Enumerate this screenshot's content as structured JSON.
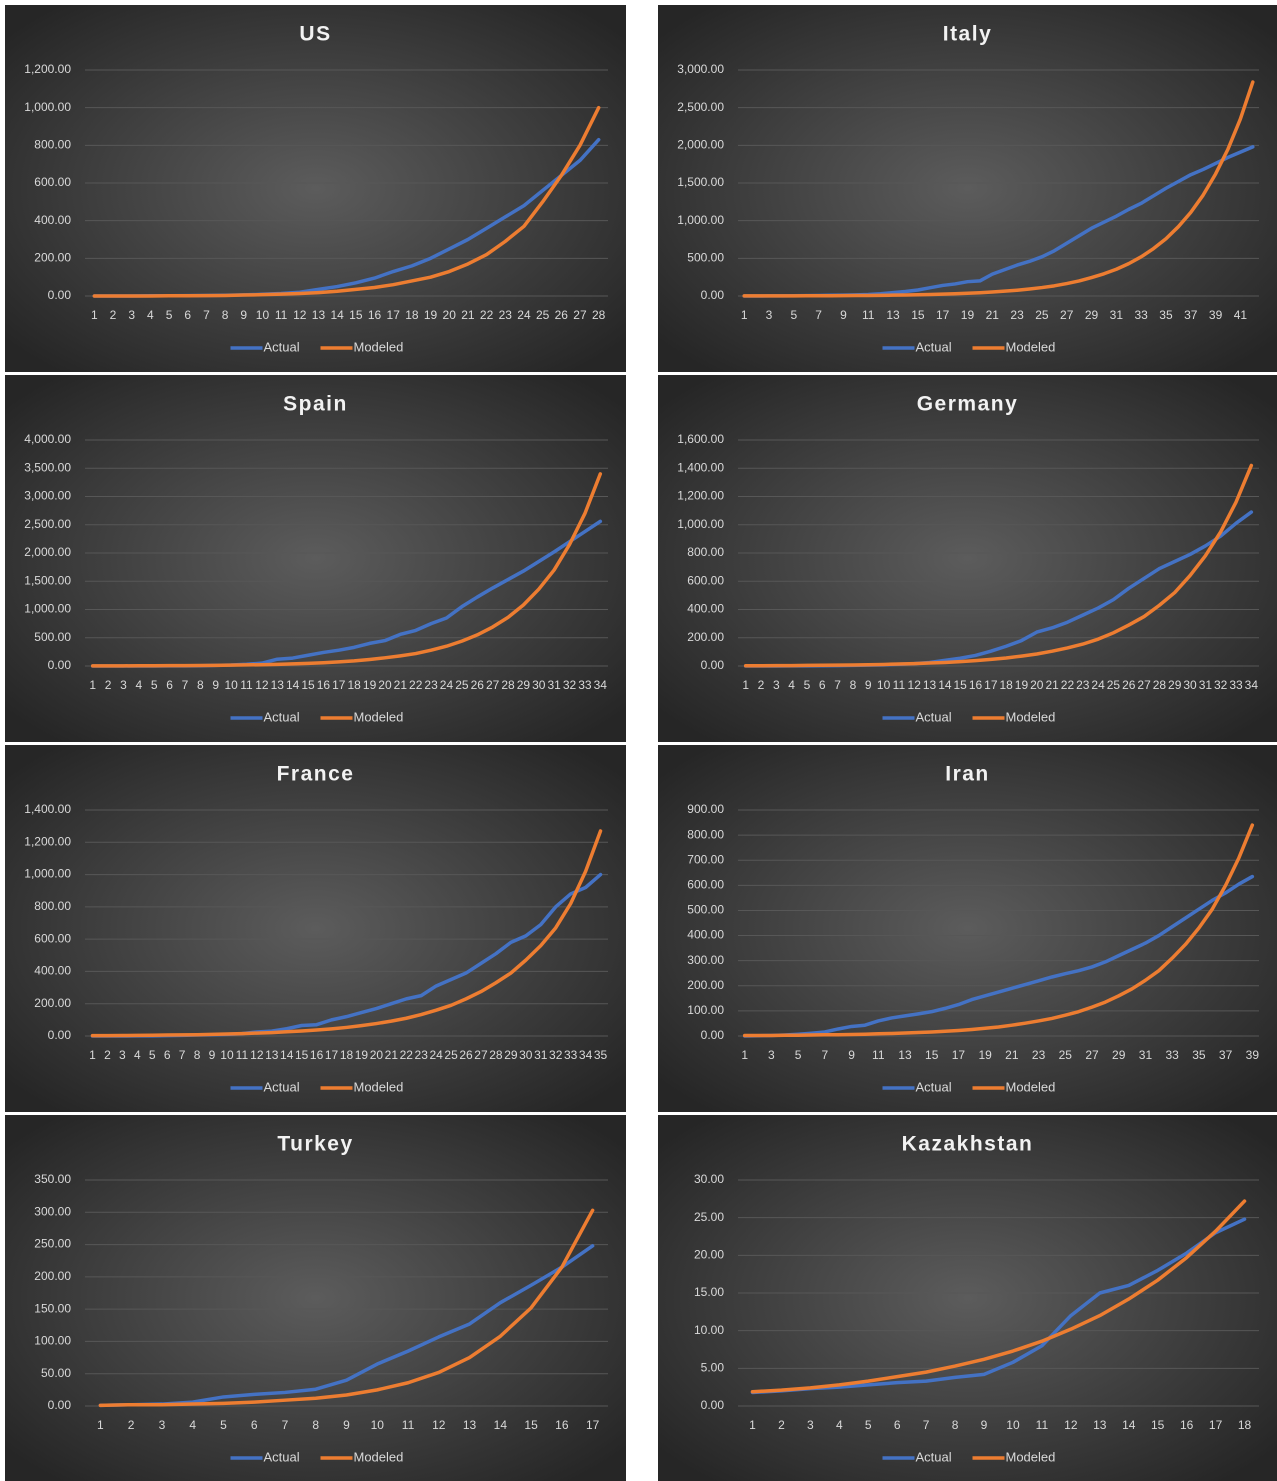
{
  "chart_data": [
    {
      "type": "line",
      "title": "US",
      "legend": "bottom",
      "grid": true,
      "categories": [
        1,
        2,
        3,
        4,
        5,
        6,
        7,
        8,
        9,
        10,
        11,
        12,
        13,
        14,
        15,
        16,
        17,
        18,
        19,
        20,
        21,
        22,
        23,
        24,
        25,
        26,
        27,
        28
      ],
      "series": [
        {
          "name": "Actual",
          "color": "#4472c4",
          "values": [
            0,
            0,
            0,
            1,
            1,
            2,
            3,
            4,
            6,
            9,
            13,
            20,
            35,
            50,
            70,
            95,
            130,
            160,
            200,
            250,
            300,
            360,
            420,
            480,
            560,
            640,
            720,
            830
          ]
        },
        {
          "name": "Modeled",
          "color": "#ed7d31",
          "values": [
            0,
            0,
            0,
            0,
            1,
            1,
            2,
            3,
            5,
            7,
            10,
            13,
            18,
            25,
            35,
            45,
            60,
            80,
            100,
            130,
            170,
            220,
            290,
            370,
            500,
            640,
            800,
            1000
          ]
        }
      ],
      "ylim": [
        0,
        1200
      ],
      "yticks": [
        {
          "value": 0,
          "label": "0.00"
        },
        {
          "value": 200,
          "label": "200.00"
        },
        {
          "value": 400,
          "label": "400.00"
        },
        {
          "value": 600,
          "label": "600.00"
        },
        {
          "value": 800,
          "label": "800.00"
        },
        {
          "value": 1000,
          "label": "1,000.00"
        },
        {
          "value": 1200,
          "label": "1,200.00"
        }
      ]
    },
    {
      "type": "line",
      "title": "Italy",
      "legend": "bottom",
      "grid": true,
      "categories": [
        1,
        null,
        3,
        null,
        5,
        null,
        7,
        null,
        9,
        null,
        11,
        null,
        13,
        null,
        15,
        null,
        17,
        null,
        19,
        null,
        21,
        null,
        23,
        null,
        25,
        null,
        27,
        null,
        29,
        null,
        31,
        null,
        33,
        null,
        35,
        null,
        37,
        null,
        39,
        null,
        41,
        null
      ],
      "series": [
        {
          "name": "Actual",
          "color": "#4472c4",
          "values": [
            0,
            0,
            1,
            2,
            3,
            5,
            7,
            10,
            12,
            15,
            20,
            30,
            45,
            60,
            80,
            110,
            140,
            160,
            190,
            200,
            290,
            350,
            410,
            460,
            520,
            600,
            700,
            800,
            900,
            980,
            1060,
            1150,
            1230,
            1330,
            1430,
            1520,
            1610,
            1680,
            1760,
            1840,
            1910,
            1980
          ]
        },
        {
          "name": "Modeled",
          "color": "#ed7d31",
          "values": [
            1,
            1,
            1,
            2,
            2,
            3,
            3,
            4,
            5,
            6,
            7,
            9,
            11,
            14,
            17,
            20,
            25,
            30,
            36,
            44,
            53,
            64,
            77,
            93,
            112,
            135,
            165,
            200,
            245,
            295,
            355,
            430,
            520,
            630,
            760,
            920,
            1110,
            1340,
            1620,
            1950,
            2350,
            2840
          ]
        }
      ],
      "ylim": [
        0,
        3000
      ],
      "yticks": [
        {
          "value": 0,
          "label": "0.00"
        },
        {
          "value": 500,
          "label": "500.00"
        },
        {
          "value": 1000,
          "label": "1,000.00"
        },
        {
          "value": 1500,
          "label": "1,500.00"
        },
        {
          "value": 2000,
          "label": "2,000.00"
        },
        {
          "value": 2500,
          "label": "2,500.00"
        },
        {
          "value": 3000,
          "label": "3,000.00"
        }
      ]
    },
    {
      "type": "line",
      "title": "Spain",
      "legend": "bottom",
      "grid": true,
      "categories": [
        1,
        2,
        3,
        4,
        5,
        6,
        7,
        8,
        9,
        10,
        11,
        12,
        13,
        14,
        15,
        16,
        17,
        18,
        19,
        20,
        21,
        22,
        23,
        24,
        25,
        26,
        27,
        28,
        29,
        30,
        31,
        32,
        33,
        34
      ],
      "series": [
        {
          "name": "Actual",
          "color": "#4472c4",
          "values": [
            0,
            0,
            0,
            0,
            1,
            2,
            3,
            5,
            10,
            17,
            30,
            50,
            120,
            140,
            190,
            240,
            280,
            330,
            400,
            450,
            560,
            630,
            750,
            850,
            1050,
            1220,
            1380,
            1530,
            1680,
            1850,
            2020,
            2200,
            2380,
            2560
          ]
        },
        {
          "name": "Modeled",
          "color": "#ed7d31",
          "values": [
            2,
            2,
            3,
            4,
            5,
            6,
            7,
            9,
            12,
            15,
            19,
            23,
            29,
            37,
            46,
            58,
            72,
            90,
            115,
            145,
            180,
            220,
            280,
            350,
            440,
            550,
            690,
            860,
            1080,
            1360,
            1700,
            2150,
            2700,
            3400
          ]
        }
      ],
      "ylim": [
        0,
        4000
      ],
      "yticks": [
        {
          "value": 0,
          "label": "0.00"
        },
        {
          "value": 500,
          "label": "500.00"
        },
        {
          "value": 1000,
          "label": "1,000.00"
        },
        {
          "value": 1500,
          "label": "1,500.00"
        },
        {
          "value": 2000,
          "label": "2,000.00"
        },
        {
          "value": 2500,
          "label": "2,500.00"
        },
        {
          "value": 3000,
          "label": "3,000.00"
        },
        {
          "value": 3500,
          "label": "3,500.00"
        },
        {
          "value": 4000,
          "label": "4,000.00"
        }
      ]
    },
    {
      "type": "line",
      "title": "Germany",
      "legend": "bottom",
      "grid": true,
      "categories": [
        1,
        2,
        3,
        4,
        5,
        6,
        7,
        8,
        9,
        10,
        11,
        12,
        13,
        14,
        15,
        16,
        17,
        18,
        19,
        20,
        21,
        22,
        23,
        24,
        25,
        26,
        27,
        28,
        29,
        30,
        31,
        32,
        33,
        34
      ],
      "series": [
        {
          "name": "Actual",
          "color": "#4472c4",
          "values": [
            0,
            0,
            0,
            1,
            1,
            2,
            3,
            4,
            6,
            8,
            12,
            17,
            25,
            40,
            55,
            75,
            105,
            140,
            180,
            240,
            270,
            310,
            360,
            410,
            470,
            550,
            620,
            690,
            740,
            790,
            850,
            920,
            1010,
            1090
          ]
        },
        {
          "name": "Modeled",
          "color": "#ed7d31",
          "values": [
            2,
            2,
            3,
            3,
            4,
            5,
            6,
            7,
            9,
            11,
            14,
            17,
            21,
            25,
            31,
            38,
            47,
            57,
            70,
            85,
            105,
            128,
            155,
            190,
            235,
            290,
            350,
            430,
            520,
            640,
            780,
            950,
            1160,
            1420
          ]
        }
      ],
      "ylim": [
        0,
        1600
      ],
      "yticks": [
        {
          "value": 0,
          "label": "0.00"
        },
        {
          "value": 200,
          "label": "200.00"
        },
        {
          "value": 400,
          "label": "400.00"
        },
        {
          "value": 600,
          "label": "600.00"
        },
        {
          "value": 800,
          "label": "800.00"
        },
        {
          "value": 1000,
          "label": "1,000.00"
        },
        {
          "value": 1200,
          "label": "1,200.00"
        },
        {
          "value": 1400,
          "label": "1,400.00"
        },
        {
          "value": 1600,
          "label": "1,600.00"
        }
      ]
    },
    {
      "type": "line",
      "title": "France",
      "legend": "bottom",
      "grid": true,
      "categories": [
        1,
        2,
        3,
        4,
        5,
        6,
        7,
        8,
        9,
        10,
        11,
        12,
        13,
        14,
        15,
        16,
        17,
        18,
        19,
        20,
        21,
        22,
        23,
        24,
        25,
        26,
        27,
        28,
        29,
        30,
        31,
        32,
        33,
        34,
        35
      ],
      "series": [
        {
          "name": "Actual",
          "color": "#4472c4",
          "values": [
            0,
            0,
            0,
            1,
            1,
            2,
            4,
            6,
            8,
            10,
            15,
            25,
            30,
            45,
            65,
            70,
            100,
            120,
            145,
            170,
            200,
            230,
            250,
            310,
            350,
            390,
            450,
            510,
            580,
            620,
            690,
            800,
            880,
            920,
            1000
          ]
        },
        {
          "name": "Modeled",
          "color": "#ed7d31",
          "values": [
            2,
            2,
            3,
            4,
            5,
            6,
            7,
            8,
            10,
            12,
            15,
            18,
            21,
            26,
            31,
            37,
            44,
            53,
            64,
            77,
            92,
            110,
            133,
            160,
            190,
            230,
            275,
            330,
            390,
            470,
            560,
            670,
            820,
            1020,
            1270
          ]
        }
      ],
      "ylim": [
        0,
        1400
      ],
      "yticks": [
        {
          "value": 0,
          "label": "0.00"
        },
        {
          "value": 200,
          "label": "200.00"
        },
        {
          "value": 400,
          "label": "400.00"
        },
        {
          "value": 600,
          "label": "600.00"
        },
        {
          "value": 800,
          "label": "800.00"
        },
        {
          "value": 1000,
          "label": "1,000.00"
        },
        {
          "value": 1200,
          "label": "1,200.00"
        },
        {
          "value": 1400,
          "label": "1,400.00"
        }
      ]
    },
    {
      "type": "line",
      "title": "Iran",
      "legend": "bottom",
      "grid": true,
      "categories": [
        1,
        null,
        3,
        null,
        5,
        null,
        7,
        null,
        9,
        null,
        11,
        null,
        13,
        null,
        15,
        null,
        17,
        null,
        19,
        null,
        21,
        null,
        23,
        null,
        25,
        null,
        27,
        null,
        29,
        null,
        31,
        null,
        33,
        null,
        35,
        null,
        37,
        null,
        39
      ],
      "series": [
        {
          "name": "Actual",
          "color": "#4472c4",
          "values": [
            0,
            1,
            2,
            4,
            7,
            11,
            16,
            28,
            38,
            43,
            60,
            72,
            80,
            88,
            97,
            110,
            125,
            145,
            160,
            175,
            190,
            205,
            220,
            235,
            248,
            260,
            275,
            295,
            320,
            345,
            370,
            400,
            435,
            470,
            505,
            540,
            570,
            605,
            635
          ]
        },
        {
          "name": "Modeled",
          "color": "#ed7d31",
          "values": [
            2,
            2,
            2,
            3,
            3,
            4,
            5,
            5,
            6,
            7,
            9,
            10,
            12,
            14,
            16,
            19,
            22,
            26,
            31,
            36,
            43,
            51,
            60,
            70,
            83,
            97,
            115,
            135,
            160,
            188,
            222,
            260,
            310,
            365,
            430,
            505,
            600,
            710,
            840
          ]
        }
      ],
      "ylim": [
        0,
        900
      ],
      "yticks": [
        {
          "value": 0,
          "label": "0.00"
        },
        {
          "value": 100,
          "label": "100.00"
        },
        {
          "value": 200,
          "label": "200.00"
        },
        {
          "value": 300,
          "label": "300.00"
        },
        {
          "value": 400,
          "label": "400.00"
        },
        {
          "value": 500,
          "label": "500.00"
        },
        {
          "value": 600,
          "label": "600.00"
        },
        {
          "value": 700,
          "label": "700.00"
        },
        {
          "value": 800,
          "label": "800.00"
        },
        {
          "value": 900,
          "label": "900.00"
        }
      ]
    },
    {
      "type": "line",
      "title": "Turkey",
      "legend": "bottom",
      "grid": true,
      "categories": [
        1,
        2,
        3,
        4,
        5,
        6,
        7,
        8,
        9,
        10,
        11,
        12,
        13,
        14,
        15,
        16,
        17
      ],
      "series": [
        {
          "name": "Actual",
          "color": "#4472c4",
          "values": [
            1,
            2,
            3,
            6,
            14,
            18,
            21,
            26,
            40,
            65,
            85,
            107,
            127,
            160,
            187,
            215,
            248
          ]
        },
        {
          "name": "Modeled",
          "color": "#ed7d31",
          "values": [
            1,
            2,
            2,
            3,
            4,
            6,
            9,
            12,
            17,
            25,
            36,
            52,
            75,
            108,
            152,
            215,
            303
          ]
        }
      ],
      "ylim": [
        0,
        350
      ],
      "yticks": [
        {
          "value": 0,
          "label": "0.00"
        },
        {
          "value": 50,
          "label": "50.00"
        },
        {
          "value": 100,
          "label": "100.00"
        },
        {
          "value": 150,
          "label": "150.00"
        },
        {
          "value": 200,
          "label": "200.00"
        },
        {
          "value": 250,
          "label": "250.00"
        },
        {
          "value": 300,
          "label": "300.00"
        },
        {
          "value": 350,
          "label": "350.00"
        }
      ]
    },
    {
      "type": "line",
      "title": "Kazakhstan",
      "legend": "bottom",
      "grid": true,
      "categories": [
        1,
        2,
        3,
        4,
        5,
        6,
        7,
        8,
        9,
        10,
        11,
        12,
        13,
        14,
        15,
        16,
        17,
        18
      ],
      "series": [
        {
          "name": "Actual",
          "color": "#4472c4",
          "values": [
            1.8,
            2.0,
            2.3,
            2.5,
            2.8,
            3.1,
            3.3,
            3.8,
            4.2,
            5.8,
            8,
            12,
            15,
            16,
            18,
            20.3,
            23,
            24.8
          ]
        },
        {
          "name": "Modeled",
          "color": "#ed7d31",
          "values": [
            1.9,
            2.1,
            2.4,
            2.8,
            3.3,
            3.9,
            4.5,
            5.3,
            6.2,
            7.3,
            8.6,
            10.2,
            12,
            14.2,
            16.7,
            19.7,
            23.2,
            27.2
          ]
        }
      ],
      "ylim": [
        0,
        30
      ],
      "yticks": [
        {
          "value": 0,
          "label": "0.00"
        },
        {
          "value": 5,
          "label": "5.00"
        },
        {
          "value": 10,
          "label": "10.00"
        },
        {
          "value": 15,
          "label": "15.00"
        },
        {
          "value": 20,
          "label": "20.00"
        },
        {
          "value": 25,
          "label": "25.00"
        },
        {
          "value": 30,
          "label": "30.00"
        }
      ]
    }
  ]
}
